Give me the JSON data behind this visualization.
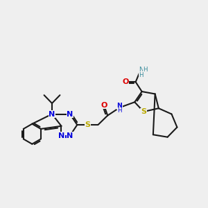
{
  "bg_color": "#efefef",
  "bond_color": "#1a1a1a",
  "N_color": "#0000dd",
  "S_color": "#bbaa00",
  "O_color": "#dd0000",
  "NH2_color": "#338899",
  "bond_lw": 1.5,
  "figsize": [
    3.0,
    3.0
  ],
  "dpi": 100,
  "xlim": [
    0.6,
    9.2
  ],
  "ylim": [
    1.8,
    7.8
  ],
  "label_fs": 8.0,
  "label_fs_s": 6.2
}
